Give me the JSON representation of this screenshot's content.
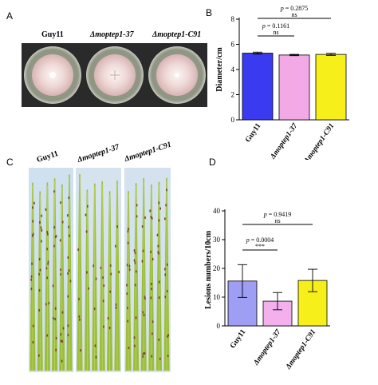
{
  "panels": {
    "A": "A",
    "B": "B",
    "C": "C",
    "D": "D"
  },
  "panel_a": {
    "labels": [
      "Guy11",
      "Δmoptep1-37",
      "Δmoptep1-C91"
    ]
  },
  "panel_c": {
    "labels": [
      "Guy11",
      "Δmoptep1-37",
      "Δmoptep1-C91"
    ]
  },
  "colors": {
    "guy11": "#3a3af0",
    "m37": "#f2a9e6",
    "c91": "#f6ef1a",
    "guy11_d": "#9e9ef5",
    "m37_d": "#f3b0ec",
    "c91_d": "#f6ef1a"
  },
  "chart_data": [
    {
      "type": "bar",
      "panel": "B",
      "categories": [
        "Guy11",
        "Δmoptep1-37",
        "Δmoptep1-C91"
      ],
      "values": [
        5.3,
        5.15,
        5.2
      ],
      "errors": [
        0.08,
        0.05,
        0.08
      ],
      "ylabel": "Diameter/cm",
      "ylim": [
        0,
        8
      ],
      "yticks": [
        0,
        2,
        4,
        6,
        8
      ],
      "annotations": [
        {
          "from": 0,
          "to": 2,
          "p": "p = 0.2875",
          "sig": "ns"
        },
        {
          "from": 0,
          "to": 1,
          "p": "p = 0.1161",
          "sig": "ns"
        }
      ]
    },
    {
      "type": "bar",
      "panel": "D",
      "categories": [
        "Guy11",
        "Δmoptep1-37",
        "Δmoptep1-C91"
      ],
      "values": [
        15.6,
        8.6,
        15.8
      ],
      "errors": [
        5.7,
        3.0,
        3.9
      ],
      "ylabel": "Lesions numbers/10cm",
      "ylim": [
        0,
        40
      ],
      "yticks": [
        0,
        10,
        20,
        30,
        40
      ],
      "annotations": [
        {
          "from": 0,
          "to": 2,
          "p": "p = 0.9419",
          "sig": "ns"
        },
        {
          "from": 0,
          "to": 1,
          "p": "p = 0.0004",
          "sig": "***"
        }
      ]
    }
  ]
}
